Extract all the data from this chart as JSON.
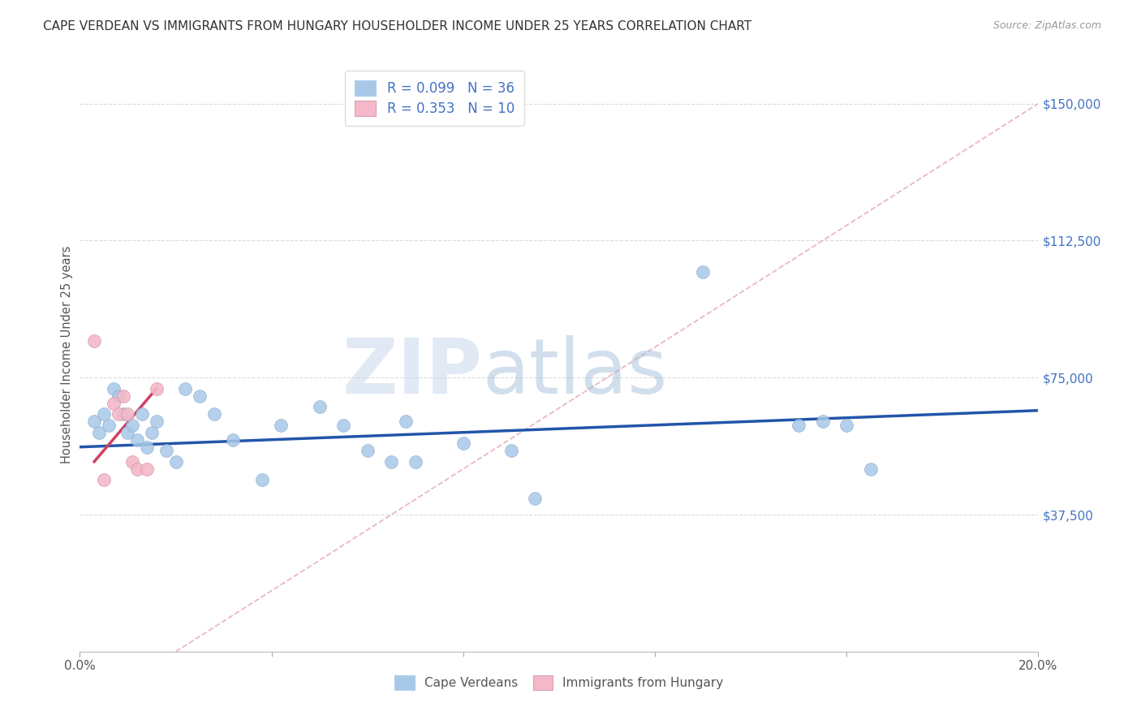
{
  "title": "CAPE VERDEAN VS IMMIGRANTS FROM HUNGARY HOUSEHOLDER INCOME UNDER 25 YEARS CORRELATION CHART",
  "source": "Source: ZipAtlas.com",
  "ylabel": "Householder Income Under 25 years",
  "xlim": [
    0.0,
    0.2
  ],
  "ylim": [
    0,
    162500
  ],
  "xticks": [
    0.0,
    0.04,
    0.08,
    0.12,
    0.16,
    0.2
  ],
  "xticklabels": [
    "0.0%",
    "",
    "",
    "",
    "",
    "20.0%"
  ],
  "ytick_values": [
    0,
    37500,
    75000,
    112500,
    150000
  ],
  "ytick_labels": [
    "",
    "$37,500",
    "$75,000",
    "$112,500",
    "$150,000"
  ],
  "legend1_label": "R = 0.099   N = 36",
  "legend2_label": "R = 0.353   N = 10",
  "legend_bottom_label1": "Cape Verdeans",
  "legend_bottom_label2": "Immigrants from Hungary",
  "blue_color": "#a8c8e8",
  "pink_color": "#f4b8c8",
  "line_blue": "#2255aa",
  "line_pink": "#d04060",
  "line_dashed_color": "#e8b0b8",
  "grid_color": "#cccccc",
  "title_color": "#333333",
  "right_tick_color": "#4472c4",
  "watermark_zip": "ZIP",
  "watermark_atlas": "atlas",
  "blue_scatter_x": [
    0.003,
    0.004,
    0.005,
    0.006,
    0.007,
    0.008,
    0.009,
    0.01,
    0.011,
    0.012,
    0.013,
    0.014,
    0.015,
    0.016,
    0.018,
    0.02,
    0.022,
    0.025,
    0.028,
    0.032,
    0.038,
    0.042,
    0.05,
    0.055,
    0.06,
    0.065,
    0.068,
    0.07,
    0.08,
    0.09,
    0.095,
    0.13,
    0.15,
    0.155,
    0.16,
    0.165
  ],
  "blue_scatter_y": [
    63000,
    60000,
    65000,
    62000,
    72000,
    70000,
    65000,
    60000,
    62000,
    58000,
    65000,
    56000,
    60000,
    63000,
    55000,
    52000,
    72000,
    70000,
    65000,
    58000,
    47000,
    62000,
    67000,
    62000,
    55000,
    52000,
    63000,
    52000,
    57000,
    55000,
    42000,
    104000,
    62000,
    63000,
    62000,
    50000
  ],
  "pink_scatter_x": [
    0.003,
    0.005,
    0.007,
    0.008,
    0.009,
    0.01,
    0.011,
    0.012,
    0.014,
    0.016
  ],
  "pink_scatter_y": [
    85000,
    47000,
    68000,
    65000,
    70000,
    65000,
    52000,
    50000,
    50000,
    72000
  ],
  "blue_trendline_x": [
    0.0,
    0.2
  ],
  "blue_trendline_y": [
    56000,
    66000
  ],
  "pink_trendline_x": [
    0.003,
    0.016
  ],
  "pink_trendline_y": [
    52000,
    72000
  ],
  "dashed_line_x": [
    0.02,
    0.2
  ],
  "dashed_line_y": [
    0,
    150000
  ],
  "scatter_size": 130
}
